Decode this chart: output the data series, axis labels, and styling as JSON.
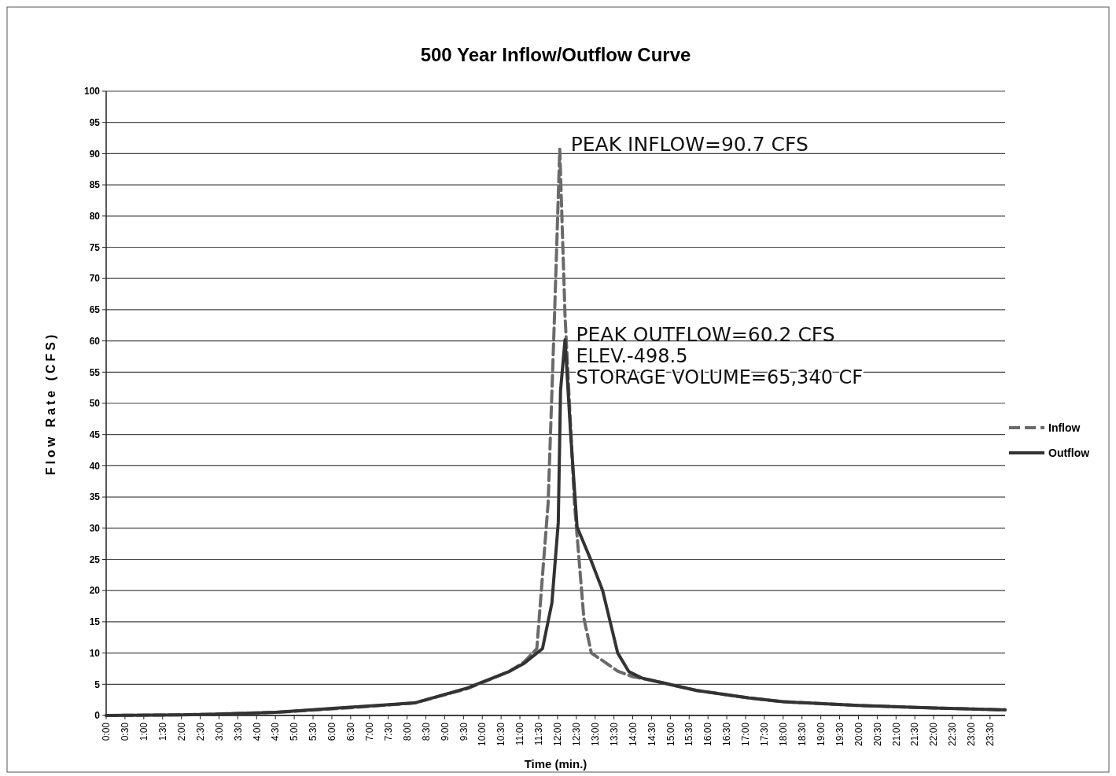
{
  "chart_data": {
    "type": "line",
    "title": "500 Year Inflow/Outflow Curve",
    "xlabel": "Time (min.)",
    "ylabel": "Flow Rate (CFS)",
    "xlim": [
      0,
      23.9
    ],
    "ylim": [
      0,
      100
    ],
    "yticks": [
      0,
      5,
      10,
      15,
      20,
      25,
      30,
      35,
      40,
      45,
      50,
      55,
      60,
      65,
      70,
      75,
      80,
      85,
      90,
      95,
      100
    ],
    "xticks": [
      {
        "value": 0,
        "label": "0:00"
      },
      {
        "value": 0.5,
        "label": "0:30"
      },
      {
        "value": 1,
        "label": "1:00"
      },
      {
        "value": 1.5,
        "label": "1:30"
      },
      {
        "value": 2,
        "label": "2:00"
      },
      {
        "value": 2.5,
        "label": "2:30"
      },
      {
        "value": 3,
        "label": "3:00"
      },
      {
        "value": 3.5,
        "label": "3:30"
      },
      {
        "value": 4,
        "label": "4:00"
      },
      {
        "value": 4.5,
        "label": "4:30"
      },
      {
        "value": 5,
        "label": "5:00"
      },
      {
        "value": 5.5,
        "label": "5:30"
      },
      {
        "value": 6,
        "label": "6:00"
      },
      {
        "value": 6.5,
        "label": "6:30"
      },
      {
        "value": 7,
        "label": "7:00"
      },
      {
        "value": 7.5,
        "label": "7:30"
      },
      {
        "value": 8,
        "label": "8:00"
      },
      {
        "value": 8.5,
        "label": "8:30"
      },
      {
        "value": 9,
        "label": "9:00"
      },
      {
        "value": 9.5,
        "label": "9:30"
      },
      {
        "value": 10,
        "label": "10:00"
      },
      {
        "value": 10.5,
        "label": "10:30"
      },
      {
        "value": 11,
        "label": "11:00"
      },
      {
        "value": 11.5,
        "label": "11:30"
      },
      {
        "value": 12,
        "label": "12:00"
      },
      {
        "value": 12.5,
        "label": "12:30"
      },
      {
        "value": 13,
        "label": "13:00"
      },
      {
        "value": 13.5,
        "label": "13:30"
      },
      {
        "value": 14,
        "label": "14:00"
      },
      {
        "value": 14.5,
        "label": "14:30"
      },
      {
        "value": 15,
        "label": "15:00"
      },
      {
        "value": 15.5,
        "label": "15:30"
      },
      {
        "value": 16,
        "label": "16:00"
      },
      {
        "value": 16.5,
        "label": "16:30"
      },
      {
        "value": 17,
        "label": "17:00"
      },
      {
        "value": 17.5,
        "label": "17:30"
      },
      {
        "value": 18,
        "label": "18:00"
      },
      {
        "value": 18.5,
        "label": "18:30"
      },
      {
        "value": 19,
        "label": "19:00"
      },
      {
        "value": 19.5,
        "label": "19:30"
      },
      {
        "value": 20,
        "label": "20:00"
      },
      {
        "value": 20.5,
        "label": "20:30"
      },
      {
        "value": 21,
        "label": "21:00"
      },
      {
        "value": 21.5,
        "label": "21:30"
      },
      {
        "value": 22,
        "label": "22:00"
      },
      {
        "value": 22.5,
        "label": "22:30"
      },
      {
        "value": 23,
        "label": "23:00"
      },
      {
        "value": 23.5,
        "label": "23:30"
      }
    ],
    "grid": "y",
    "legend": "right",
    "marker": "none",
    "series": [
      {
        "name": "Inflow",
        "color": "#6a6a6a",
        "line_style": "dashed",
        "x": [
          0,
          2,
          2.8,
          4.5,
          6.4,
          8.2,
          9.6,
          10.7,
          11.1,
          11.45,
          11.75,
          11.92,
          12.06,
          12.2,
          12.45,
          12.7,
          12.9,
          13.17,
          13.6,
          14,
          14.45,
          15.7,
          17.1,
          18,
          20,
          22,
          23.9
        ],
        "values": [
          0,
          0.1,
          0.2,
          0.5,
          1.2,
          2,
          4.3,
          7,
          8.5,
          10.7,
          34,
          64,
          90.7,
          64,
          34,
          15.6,
          10,
          8.9,
          7.1,
          6.2,
          5.7,
          4,
          2.8,
          2.2,
          1.6,
          1.2,
          0.9
        ]
      },
      {
        "name": "Outflow",
        "color": "#333333",
        "line_style": "solid",
        "x": [
          0,
          2,
          2.8,
          4.5,
          6.4,
          8.2,
          9.6,
          10.7,
          11.1,
          11.6,
          11.85,
          12.02,
          12.08,
          12.2,
          12.35,
          12.52,
          12.88,
          13.2,
          13.4,
          13.6,
          13.9,
          14.24,
          14.45,
          15.7,
          17.1,
          18,
          20,
          22,
          23.9
        ],
        "values": [
          0,
          0.1,
          0.2,
          0.5,
          1.3,
          2,
          4.4,
          7,
          8.3,
          10.7,
          18,
          30.9,
          52,
          60.2,
          45,
          30.2,
          25,
          20,
          15,
          10,
          7,
          6,
          5.7,
          4,
          2.8,
          2.2,
          1.6,
          1.2,
          0.9
        ]
      }
    ],
    "annotations": [
      {
        "text": "PEAK INFLOW=90.7 CFS",
        "x": 12.06,
        "y": 90.7
      },
      {
        "text": "PEAK OUTFLOW=60.2 CFS",
        "x": 12.2,
        "y": 60.2
      },
      "ELEV.-498.5",
      "STORAGE VOLUME=65,340 CF"
    ]
  }
}
